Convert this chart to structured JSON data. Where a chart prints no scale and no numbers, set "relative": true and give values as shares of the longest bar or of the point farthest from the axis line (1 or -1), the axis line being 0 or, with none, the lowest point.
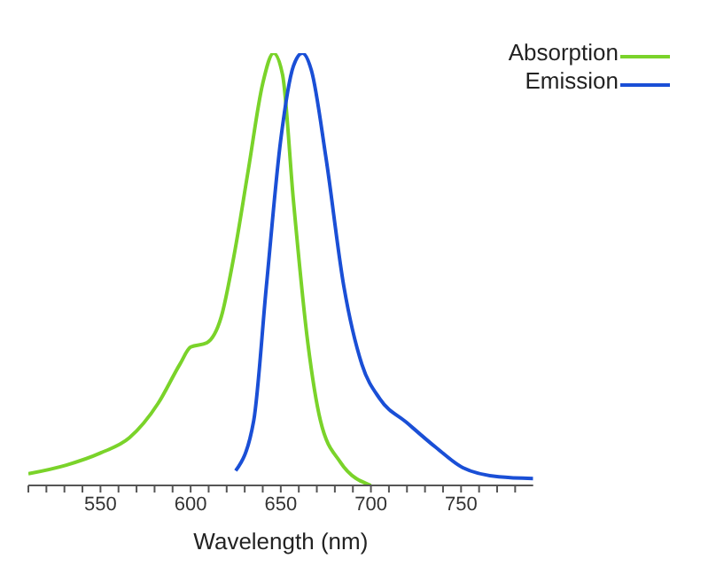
{
  "chart_data": {
    "type": "line",
    "relative": true,
    "xlabel": "Wavelength (nm)",
    "xlim": [
      510,
      790
    ],
    "xticks": [
      {
        "value": 510,
        "label": null
      },
      {
        "value": 520,
        "label": null
      },
      {
        "value": 530,
        "label": null
      },
      {
        "value": 540,
        "label": null
      },
      550,
      {
        "value": 560,
        "label": null
      },
      {
        "value": 570,
        "label": null
      },
      {
        "value": 580,
        "label": null
      },
      {
        "value": 590,
        "label": null
      },
      600,
      {
        "value": 610,
        "label": null
      },
      {
        "value": 620,
        "label": null
      },
      {
        "value": 630,
        "label": null
      },
      {
        "value": 640,
        "label": null
      },
      650,
      {
        "value": 660,
        "label": null
      },
      {
        "value": 670,
        "label": null
      },
      {
        "value": 680,
        "label": null
      },
      {
        "value": 690,
        "label": null
      },
      700,
      {
        "value": 710,
        "label": null
      },
      {
        "value": 720,
        "label": null
      },
      {
        "value": 730,
        "label": null
      },
      {
        "value": 740,
        "label": null
      },
      750,
      {
        "value": 760,
        "label": null
      },
      {
        "value": 770,
        "label": null
      },
      {
        "value": 780,
        "label": null
      }
    ],
    "legend": "top right",
    "marker": "none",
    "line_style": "solid",
    "series": [
      {
        "name": "Absorption",
        "color": "#7ad32a",
        "x": [
          510,
          531,
          550,
          566,
          582,
          594,
          600,
          609,
          617,
          624,
          632,
          640,
          646,
          651,
          657,
          665,
          672,
          683,
          700
        ],
        "values": [
          0.027,
          0.047,
          0.075,
          0.11,
          0.19,
          0.28,
          0.32,
          0.33,
          0.39,
          0.53,
          0.73,
          0.93,
          1.0,
          0.95,
          0.66,
          0.33,
          0.15,
          0.054,
          0
        ]
      },
      {
        "name": "Emission",
        "color": "#1a4fd6",
        "x": [
          625,
          635,
          642,
          650,
          657,
          662,
          667,
          675,
          685,
          695,
          705,
          720,
          736,
          751,
          771,
          790
        ],
        "values": [
          0.034,
          0.15,
          0.46,
          0.8,
          0.97,
          1.0,
          0.96,
          0.76,
          0.46,
          0.28,
          0.2,
          0.145,
          0.088,
          0.041,
          0.02,
          0.016
        ]
      }
    ]
  }
}
